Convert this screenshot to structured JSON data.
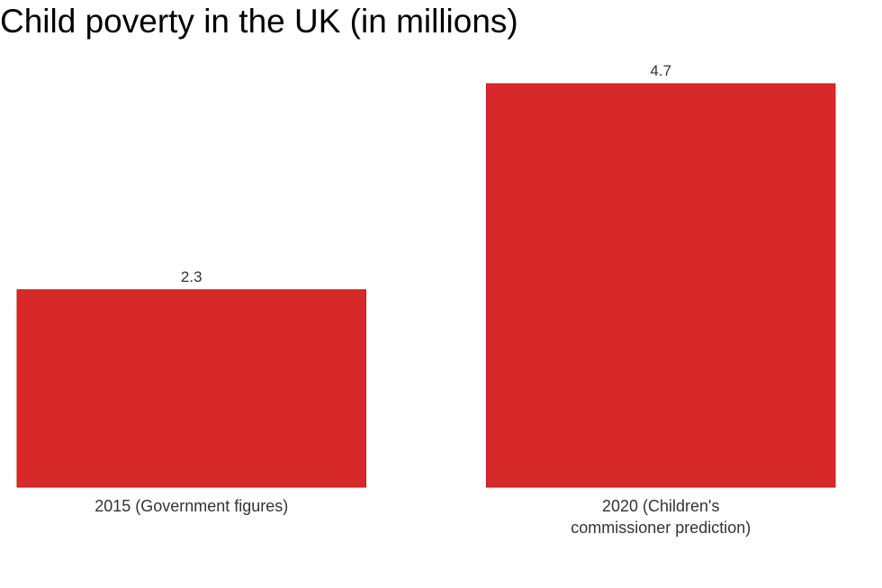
{
  "chart_data": {
    "type": "bar",
    "title": "Child poverty in the UK (in millions)",
    "categories": [
      [
        "2015 (Government figures)"
      ],
      [
        "2020 (Children's",
        "commissioner prediction)"
      ]
    ],
    "values": [
      2.3,
      4.7
    ],
    "value_labels": [
      "2.3",
      "4.7"
    ],
    "xlabel": "",
    "ylabel": "",
    "ylim": [
      0,
      4.7
    ],
    "grid": false,
    "legend": "none",
    "bar_color": "#d7282a",
    "bar_edge_color": "#c8191b"
  }
}
